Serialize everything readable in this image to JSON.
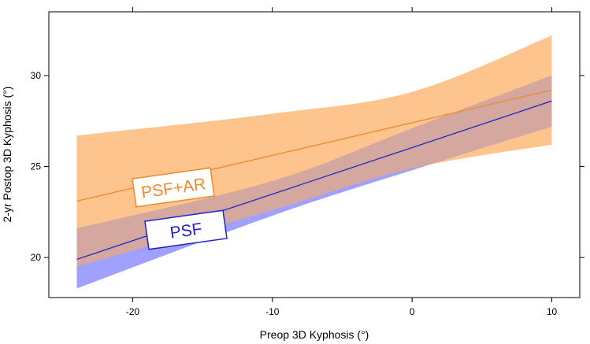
{
  "chart_data": {
    "type": "line",
    "title": "",
    "xlabel": "Preop 3D Kyphosis (°)",
    "ylabel": "2-yr Postop 3D Kyphosis (°)",
    "xlim": [
      -26,
      12
    ],
    "ylim": [
      17.8,
      33.5
    ],
    "xticks": [
      -20,
      -10,
      0,
      10
    ],
    "yticks": [
      20,
      25,
      30
    ],
    "xtick_labels": [
      "-20",
      "-10",
      "0",
      "10"
    ],
    "ytick_labels": [
      "20",
      "25",
      "30"
    ],
    "grid": false,
    "legend": "inline callouts",
    "series": [
      {
        "name": "PSF+AR",
        "label": "PSF+AR",
        "color": "#f08a2a",
        "band_color": "#fdc48d",
        "x": [
          -24,
          10
        ],
        "y": [
          23.1,
          29.2
        ],
        "band_lower": [
          [
            -24,
            19.5
          ],
          [
            -10,
            22.6
          ],
          [
            0,
            24.9
          ],
          [
            10,
            26.2
          ]
        ],
        "band_upper": [
          [
            -24,
            26.7
          ],
          [
            -10,
            27.9
          ],
          [
            0,
            29.1
          ],
          [
            10,
            32.2
          ]
        ]
      },
      {
        "name": "PSF",
        "label": "PSF",
        "color": "#2222cc",
        "band_color": "#a0a0ff",
        "x": [
          -24,
          10
        ],
        "y": [
          19.9,
          28.6
        ],
        "band_lower": [
          [
            -24,
            18.3
          ],
          [
            -10,
            22.3
          ],
          [
            0,
            24.8
          ],
          [
            10,
            27.2
          ]
        ],
        "band_upper": [
          [
            -24,
            21.6
          ],
          [
            -10,
            24.2
          ],
          [
            0,
            27.1
          ],
          [
            10,
            30.0
          ]
        ]
      }
    ]
  }
}
